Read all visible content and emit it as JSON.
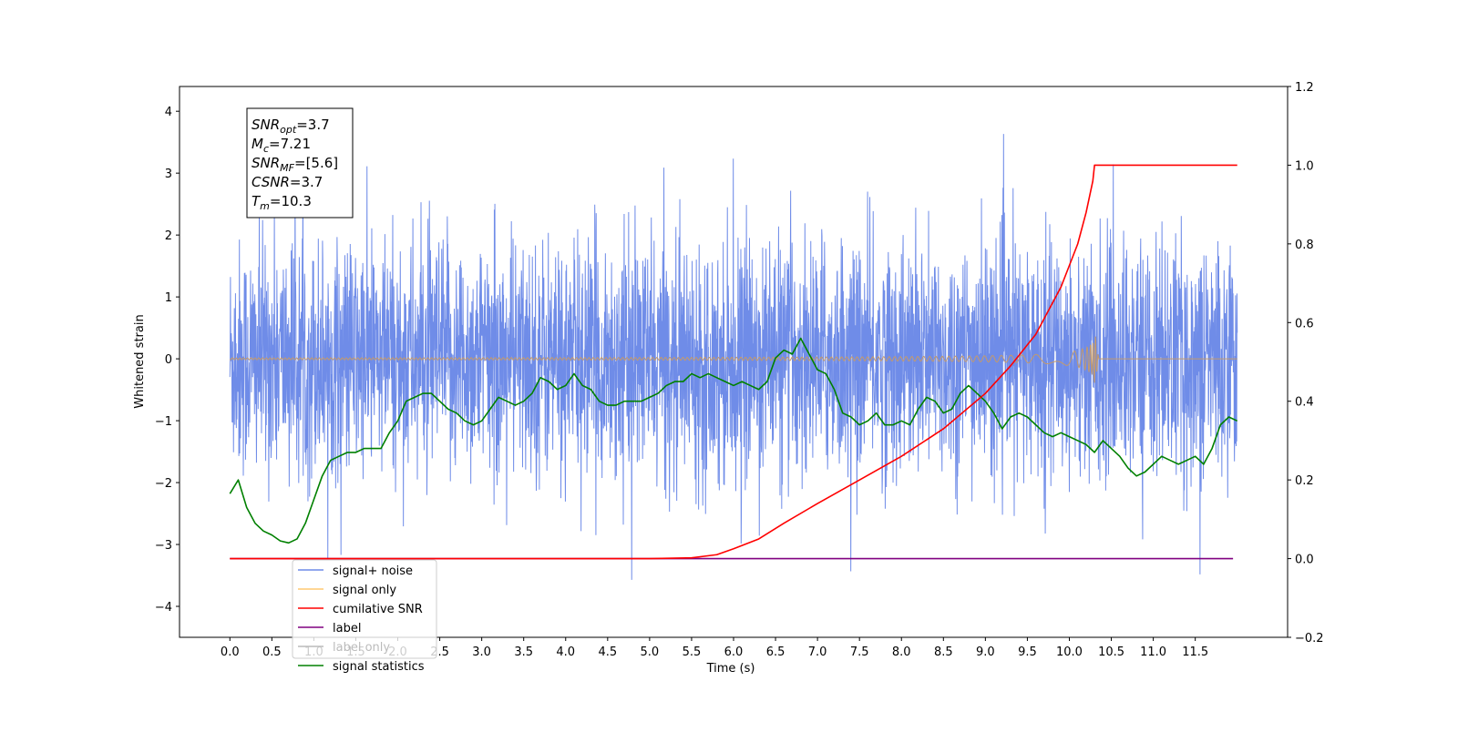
{
  "chart_data": {
    "type": "line",
    "xlabel": "Time (s)",
    "ylabel": "Whitened strain",
    "xlim": [
      -0.6,
      12.6
    ],
    "ylim": [
      -4.5,
      4.4
    ],
    "y2lim": [
      -0.2,
      1.2
    ],
    "x_ticks": [
      "0.0",
      "0.5",
      "1.0",
      "1.5",
      "2.0",
      "2.5",
      "3.0",
      "3.5",
      "4.0",
      "4.5",
      "5.0",
      "5.5",
      "6.0",
      "6.5",
      "7.0",
      "7.5",
      "8.0",
      "8.5",
      "9.0",
      "9.5",
      "10.0",
      "10.5",
      "11.0",
      "11.5"
    ],
    "x_tick_values": [
      0,
      0.5,
      1,
      1.5,
      2,
      2.5,
      3,
      3.5,
      4,
      4.5,
      5,
      5.5,
      6,
      6.5,
      7,
      7.5,
      8,
      8.5,
      9,
      9.5,
      10,
      10.5,
      11,
      11.5
    ],
    "y_ticks": [
      "4",
      "3",
      "2",
      "1",
      "0",
      "−1",
      "−2",
      "−3",
      "−4"
    ],
    "y_tick_values": [
      4,
      3,
      2,
      1,
      0,
      -1,
      -2,
      -3,
      -4
    ],
    "y2_ticks": [
      "1.2",
      "1.0",
      "0.8",
      "0.6",
      "0.4",
      "0.2",
      "0.0",
      "−0.2"
    ],
    "y2_tick_values": [
      1.2,
      1.0,
      0.8,
      0.6,
      0.4,
      0.2,
      0.0,
      -0.2
    ],
    "annotation": {
      "lines": [
        {
          "base": "SNR",
          "sub": "opt",
          "rest": "=3.7"
        },
        {
          "base": "M",
          "sub": "c",
          "rest": "=7.21"
        },
        {
          "base": "SNR",
          "sub": "MF",
          "rest": "=[5.6]"
        },
        {
          "base": "CSNR",
          "sub": "",
          "rest": "=3.7"
        },
        {
          "base": "T",
          "sub": "m",
          "rest": "=10.3"
        }
      ]
    },
    "legend": {
      "placement": "lower-left",
      "entries": [
        {
          "label": "signal+ noise",
          "color": "#6f8ce8"
        },
        {
          "label": "signal only",
          "color": "#ffc870"
        },
        {
          "label": "cumilative SNR",
          "color": "#ff0000"
        },
        {
          "label": "label",
          "color": "#800080"
        },
        {
          "label": "label only",
          "color": "#bbbbbb"
        },
        {
          "label": "signal statistics",
          "color": "#008000"
        }
      ]
    },
    "series": [
      {
        "name": "signal+ noise",
        "axis": "left",
        "color": "#6f8ce8",
        "description_range": [
          -4.1,
          3.65
        ],
        "x_range": [
          0,
          12.0
        ]
      },
      {
        "name": "signal only",
        "axis": "left",
        "color": "#c49a6c",
        "peak_time": 10.3,
        "peak_amplitude": 0.5
      },
      {
        "name": "cumilative SNR",
        "axis": "right",
        "color": "#ff0000",
        "x": [
          0,
          5.0,
          5.5,
          5.8,
          6.0,
          6.3,
          6.6,
          7.0,
          7.5,
          8.0,
          8.5,
          9.0,
          9.3,
          9.6,
          9.9,
          10.1,
          10.2,
          10.28,
          10.3,
          12.0
        ],
        "values": [
          0,
          0,
          0.002,
          0.01,
          0.025,
          0.05,
          0.09,
          0.14,
          0.2,
          0.26,
          0.33,
          0.42,
          0.49,
          0.57,
          0.69,
          0.8,
          0.88,
          0.96,
          1.0,
          1.0
        ]
      },
      {
        "name": "label",
        "axis": "right",
        "color": "#800080",
        "x": [
          0,
          11.95
        ],
        "values": [
          0,
          0
        ]
      },
      {
        "name": "signal statistics",
        "axis": "right",
        "color": "#008000",
        "x": [
          0,
          0.1,
          0.2,
          0.3,
          0.4,
          0.5,
          0.6,
          0.7,
          0.8,
          0.9,
          1.0,
          1.1,
          1.2,
          1.3,
          1.4,
          1.5,
          1.6,
          1.7,
          1.8,
          1.9,
          2.0,
          2.1,
          2.2,
          2.3,
          2.4,
          2.5,
          2.6,
          2.7,
          2.8,
          2.9,
          3.0,
          3.1,
          3.2,
          3.3,
          3.4,
          3.5,
          3.6,
          3.7,
          3.8,
          3.9,
          4.0,
          4.1,
          4.2,
          4.3,
          4.4,
          4.5,
          4.6,
          4.7,
          4.8,
          4.9,
          5.0,
          5.1,
          5.2,
          5.3,
          5.4,
          5.5,
          5.6,
          5.7,
          5.8,
          5.9,
          6.0,
          6.1,
          6.2,
          6.3,
          6.4,
          6.5,
          6.6,
          6.7,
          6.8,
          6.9,
          7.0,
          7.1,
          7.2,
          7.3,
          7.4,
          7.5,
          7.6,
          7.7,
          7.8,
          7.9,
          8.0,
          8.1,
          8.2,
          8.3,
          8.4,
          8.5,
          8.6,
          8.7,
          8.8,
          8.9,
          9.0,
          9.1,
          9.2,
          9.3,
          9.4,
          9.5,
          9.6,
          9.7,
          9.8,
          9.9,
          10.0,
          10.1,
          10.2,
          10.3,
          10.4,
          10.5,
          10.6,
          10.7,
          10.8,
          10.9,
          11.0,
          11.1,
          11.2,
          11.3,
          11.4,
          11.5,
          11.6,
          11.7,
          11.8,
          11.9,
          12.0
        ],
        "values": [
          0.165,
          0.2,
          0.13,
          0.09,
          0.07,
          0.06,
          0.045,
          0.04,
          0.05,
          0.09,
          0.15,
          0.21,
          0.25,
          0.26,
          0.27,
          0.27,
          0.28,
          0.28,
          0.28,
          0.32,
          0.35,
          0.4,
          0.41,
          0.42,
          0.42,
          0.4,
          0.38,
          0.37,
          0.35,
          0.34,
          0.35,
          0.38,
          0.41,
          0.4,
          0.39,
          0.4,
          0.42,
          0.46,
          0.45,
          0.43,
          0.44,
          0.47,
          0.44,
          0.43,
          0.4,
          0.39,
          0.39,
          0.4,
          0.4,
          0.4,
          0.41,
          0.42,
          0.44,
          0.45,
          0.45,
          0.47,
          0.46,
          0.47,
          0.46,
          0.45,
          0.44,
          0.45,
          0.44,
          0.43,
          0.45,
          0.51,
          0.53,
          0.52,
          0.56,
          0.52,
          0.48,
          0.47,
          0.43,
          0.37,
          0.36,
          0.34,
          0.35,
          0.37,
          0.34,
          0.34,
          0.35,
          0.34,
          0.38,
          0.41,
          0.4,
          0.37,
          0.38,
          0.42,
          0.44,
          0.42,
          0.4,
          0.37,
          0.33,
          0.36,
          0.37,
          0.36,
          0.34,
          0.32,
          0.31,
          0.32,
          0.31,
          0.3,
          0.29,
          0.27,
          0.3,
          0.28,
          0.26,
          0.23,
          0.21,
          0.22,
          0.24,
          0.26,
          0.25,
          0.24,
          0.25,
          0.26,
          0.24,
          0.28,
          0.34,
          0.36,
          0.35
        ]
      }
    ]
  }
}
